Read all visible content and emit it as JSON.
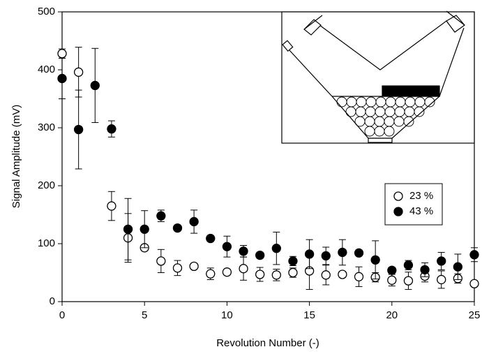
{
  "chart_data": {
    "type": "scatter",
    "xlabel": "Revolution Number (-)",
    "ylabel": "Signal Amplitude (mV)",
    "xlim": [
      0,
      25
    ],
    "xticks": [
      0,
      5,
      10,
      15,
      20,
      25
    ],
    "ylim": [
      0,
      500
    ],
    "yticks": [
      0,
      100,
      200,
      300,
      400,
      500
    ],
    "legend": "right",
    "series": [
      {
        "name": "23 %",
        "color": "#ffffff",
        "x": [
          0,
          1,
          3,
          4,
          5,
          6,
          7,
          8,
          9,
          10,
          11,
          12,
          13,
          14,
          15,
          16,
          17,
          18,
          19,
          20,
          21,
          22,
          23,
          24,
          25
        ],
        "values": [
          428,
          396,
          165,
          110,
          93,
          70,
          58,
          61,
          48,
          51,
          57,
          47,
          46,
          50,
          53,
          46,
          47,
          43,
          42,
          37,
          36,
          44,
          38,
          40,
          31
        ],
        "errors": [
          8,
          43,
          25,
          42,
          5,
          20,
          13,
          5,
          10,
          5,
          20,
          12,
          10,
          8,
          32,
          17,
          5,
          17,
          8,
          10,
          15,
          10,
          15,
          8,
          5
        ]
      },
      {
        "name": "43 %",
        "color": "#000000",
        "x": [
          0,
          1,
          2,
          3,
          4,
          5,
          6,
          7,
          8,
          9,
          10,
          11,
          12,
          13,
          14,
          15,
          16,
          17,
          18,
          19,
          20,
          21,
          22,
          23,
          24,
          25
        ],
        "values": [
          385,
          297,
          373,
          298,
          125,
          125,
          148,
          127,
          138,
          109,
          95,
          87,
          80,
          92,
          70,
          82,
          79,
          85,
          84,
          72,
          54,
          63,
          55,
          70,
          60,
          81
        ],
        "errors": [
          35,
          68,
          64,
          14,
          53,
          32,
          10,
          5,
          20,
          5,
          18,
          10,
          5,
          28,
          8,
          25,
          15,
          22,
          5,
          33,
          5,
          8,
          12,
          15,
          22,
          12
        ]
      }
    ]
  }
}
